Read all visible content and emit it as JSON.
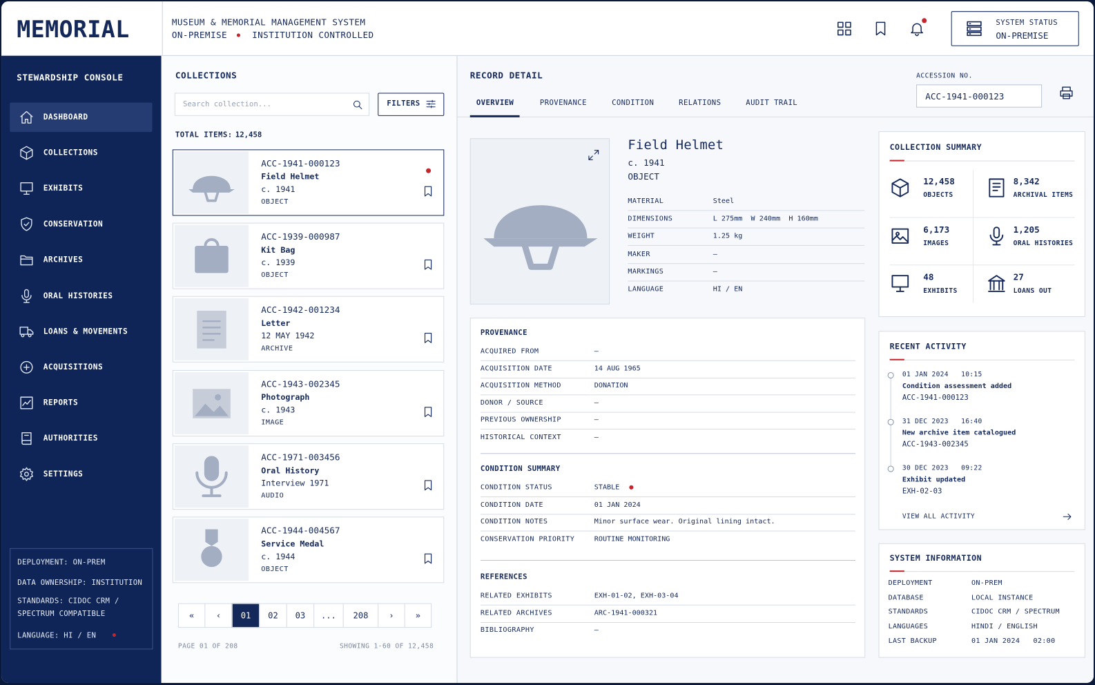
{
  "header": {
    "logo": "MEMORIAL",
    "system_name": "MUSEUM & MEMORIAL MANAGEMENT SYSTEM",
    "mode": "ON-PREMISE",
    "control": "INSTITUTION CONTROLLED",
    "status_label": "SYSTEM STATUS",
    "status_value": "ON-PREMISE"
  },
  "sidebar": {
    "title": "STEWARDSHIP CONSOLE",
    "nav": [
      "DASHBOARD",
      "COLLECTIONS",
      "EXHIBITS",
      "CONSERVATION",
      "ARCHIVES",
      "ORAL HISTORIES",
      "LOANS & MOVEMENTS",
      "ACQUISITIONS",
      "REPORTS",
      "AUTHORITIES",
      "SETTINGS"
    ],
    "footer": [
      "DEPLOYMENT: ON-PREM",
      "DATA OWNERSHIP: INSTITUTION",
      "STANDARDS: CIDOC CRM / SPECTRUM COMPATIBLE",
      "LANGUAGE: HI / EN"
    ]
  },
  "collections": {
    "title": "COLLECTIONS",
    "search_placeholder": "Search collection...",
    "filters": "FILTERS",
    "total_label": "TOTAL ITEMS:",
    "total": "12,458",
    "items": [
      {
        "id": "ACC-1941-000123",
        "title": "Field Helmet",
        "date": "c. 1941",
        "kind": "OBJECT"
      },
      {
        "id": "ACC-1939-000987",
        "title": "Kit Bag",
        "date": "c. 1939",
        "kind": "OBJECT"
      },
      {
        "id": "ACC-1942-001234",
        "title": "Letter",
        "date": "12 MAY 1942",
        "kind": "ARCHIVE"
      },
      {
        "id": "ACC-1943-002345",
        "title": "Photograph",
        "date": "c. 1943",
        "kind": "IMAGE"
      },
      {
        "id": "ACC-1971-003456",
        "title": "Oral History",
        "date": "Interview 1971",
        "kind": "AUDIO"
      },
      {
        "id": "ACC-1944-004567",
        "title": "Service Medal",
        "date": "c. 1944",
        "kind": "OBJECT"
      }
    ],
    "pagination": [
      "«",
      "‹",
      "01",
      "02",
      "03",
      "...",
      "208",
      "›",
      "»"
    ],
    "page_info": "PAGE 01 OF 208",
    "showing": "SHOWING 1-60 OF 12,458"
  },
  "record": {
    "title": "RECORD DETAIL",
    "tabs": [
      "OVERVIEW",
      "PROVENANCE",
      "CONDITION",
      "RELATIONS",
      "AUDIT TRAIL"
    ],
    "accession_label": "ACCESSION NO.",
    "accession": "ACC-1941-000123",
    "name": "Field Helmet",
    "date": "c. 1941",
    "kind": "OBJECT",
    "fields": [
      [
        "MATERIAL",
        "Steel"
      ],
      [
        "DIMENSIONS",
        "L 275mm  W 240mm  H 160mm"
      ],
      [
        "WEIGHT",
        "1.25 kg"
      ],
      [
        "MAKER",
        "—"
      ],
      [
        "MARKINGS",
        "—"
      ],
      [
        "LANGUAGE",
        "HI / EN"
      ]
    ],
    "sections": [
      {
        "title": "PROVENANCE",
        "rows": [
          [
            "ACQUIRED FROM",
            "—"
          ],
          [
            "ACQUISITION DATE",
            "14 AUG 1965"
          ],
          [
            "ACQUISITION METHOD",
            "DONATION"
          ],
          [
            "DONOR / SOURCE",
            "—"
          ],
          [
            "PREVIOUS OWNERSHIP",
            "—"
          ],
          [
            "HISTORICAL CONTEXT",
            "—"
          ]
        ]
      },
      {
        "title": "CONDITION SUMMARY",
        "rows": [
          [
            "CONDITION STATUS",
            "STABLE"
          ],
          [
            "CONDITION DATE",
            "01 JAN 2024"
          ],
          [
            "CONDITION NOTES",
            "Minor surface wear. Original lining intact."
          ],
          [
            "CONSERVATION PRIORITY",
            "ROUTINE MONITORING"
          ]
        ]
      },
      {
        "title": "REFERENCES",
        "rows": [
          [
            "RELATED EXHIBITS",
            "EXH-01-02, EXH-03-04"
          ],
          [
            "RELATED ARCHIVES",
            "ARC-1941-000321"
          ],
          [
            "BIBLIOGRAPHY",
            "—"
          ]
        ]
      }
    ]
  },
  "summary": {
    "title": "COLLECTION SUMMARY",
    "stats": [
      {
        "value": "12,458",
        "label": "OBJECTS"
      },
      {
        "value": "8,342",
        "label": "ARCHIVAL ITEMS"
      },
      {
        "value": "6,173",
        "label": "IMAGES"
      },
      {
        "value": "1,205",
        "label": "ORAL HISTORIES"
      },
      {
        "value": "48",
        "label": "EXHIBITS"
      },
      {
        "value": "27",
        "label": "LOANS OUT"
      }
    ]
  },
  "activity": {
    "title": "RECENT ACTIVITY",
    "items": [
      {
        "time": "01 JAN 2024   10:15",
        "text": "Condition assessment added",
        "ref": "ACC-1941-000123"
      },
      {
        "time": "31 DEC 2023   16:40",
        "text": "New archive item catalogued",
        "ref": "ACC-1943-002345"
      },
      {
        "time": "30 DEC 2023   09:22",
        "text": "Exhibit updated",
        "ref": "EXH-02-03"
      }
    ],
    "link": "VIEW ALL ACTIVITY"
  },
  "system": {
    "title": "SYSTEM INFORMATION",
    "rows": [
      [
        "DEPLOYMENT",
        "ON-PREM"
      ],
      [
        "DATABASE",
        "LOCAL INSTANCE"
      ],
      [
        "STANDARDS",
        "CIDOC CRM / SPECTRUM"
      ],
      [
        "LANGUAGES",
        "HINDI / ENGLISH"
      ],
      [
        "LAST BACKUP",
        "01 JAN 2024   02:00"
      ]
    ]
  }
}
